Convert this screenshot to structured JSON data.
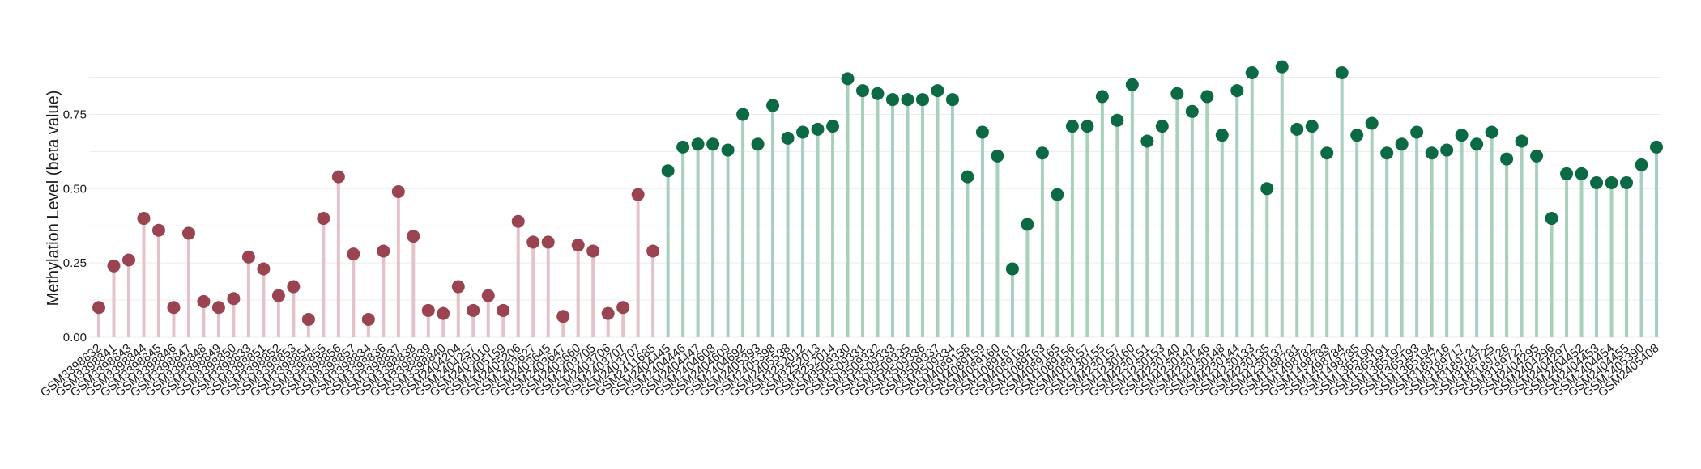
{
  "chart_data": {
    "type": "lollipop",
    "title": "",
    "xlabel": "",
    "ylabel": "Methylation Level (beta value)",
    "ylim": [
      0,
      0.92
    ],
    "yticks": [
      0.0,
      0.25,
      0.5,
      0.75
    ],
    "ytick_labels": [
      "0.00",
      "0.25",
      "0.50",
      "0.75"
    ],
    "grid": true,
    "colors": {
      "group_a_point": "#9b4451",
      "group_a_stem": "#e3c3c9",
      "group_b_point": "#0b6a43",
      "group_b_stem": "#a9cfbd",
      "grid": "#ececec"
    },
    "group_a_count": 38,
    "categories": [
      "GSM3398832",
      "GSM3398841",
      "GSM3398843",
      "GSM3398844",
      "GSM3398845",
      "GSM3398846",
      "GSM3398847",
      "GSM3398848",
      "GSM3398849",
      "GSM3398850",
      "GSM3398833",
      "GSM3398851",
      "GSM3398852",
      "GSM3398853",
      "GSM3398854",
      "GSM3398855",
      "GSM3398856",
      "GSM3398857",
      "GSM3398834",
      "GSM3398836",
      "GSM3398837",
      "GSM3398838",
      "GSM3398839",
      "GSM3398840",
      "GSM2404204",
      "GSM2404257",
      "GSM2403010",
      "GSM2405159",
      "GSM2405206",
      "GSM2403627",
      "GSM2403645",
      "GSM2403647",
      "GSM2403660",
      "GSM2403705",
      "GSM2403706",
      "GSM2403707",
      "GSM2403707",
      "GSM2411685",
      "GSM2404445",
      "GSM2404446",
      "GSM2404447",
      "GSM2404608",
      "GSM2404609",
      "GSM2404692",
      "GSM2405393",
      "GSM2405398",
      "GSM2405538",
      "GSM3252012",
      "GSM3252013",
      "GSM3252014",
      "GSM3509330",
      "GSM3509331",
      "GSM3509332",
      "GSM3509333",
      "GSM3509335",
      "GSM3509336",
      "GSM3509337",
      "GSM3509334",
      "GSM4089158",
      "GSM4089159",
      "GSM4089160",
      "GSM4089161",
      "GSM4089162",
      "GSM4089163",
      "GSM4089165",
      "GSM4089156",
      "GSM4089157",
      "GSM4230155",
      "GSM4230157",
      "GSM4230160",
      "GSM4230151",
      "GSM4230153",
      "GSM4230140",
      "GSM4230142",
      "GSM4230146",
      "GSM4230148",
      "GSM4230144",
      "GSM4230133",
      "GSM4230135",
      "GSM4230137",
      "GSM1498781",
      "GSM1498782",
      "GSM1498783",
      "GSM1498784",
      "GSM1498785",
      "GSM1365190",
      "GSM1365191",
      "GSM1365192",
      "GSM1365193",
      "GSM1365194",
      "GSM3189716",
      "GSM3189717",
      "GSM3189721",
      "GSM3189725",
      "GSM3189726",
      "GSM3189727",
      "GSM2404295",
      "GSM2404296",
      "GSM2404297",
      "GSM2404452",
      "GSM2404453",
      "GSM2404454",
      "GSM2404455",
      "GSM2405390",
      "GSM2405408"
    ],
    "values": [
      0.1,
      0.24,
      0.26,
      0.4,
      0.36,
      0.1,
      0.35,
      0.12,
      0.1,
      0.13,
      0.27,
      0.23,
      0.14,
      0.17,
      0.06,
      0.4,
      0.54,
      0.28,
      0.06,
      0.29,
      0.49,
      0.34,
      0.09,
      0.08,
      0.17,
      0.09,
      0.14,
      0.09,
      0.39,
      0.32,
      0.32,
      0.07,
      0.31,
      0.29,
      0.08,
      0.1,
      0.48,
      0.29,
      0.56,
      0.64,
      0.65,
      0.65,
      0.63,
      0.75,
      0.65,
      0.78,
      0.67,
      0.69,
      0.7,
      0.71,
      0.87,
      0.83,
      0.82,
      0.8,
      0.8,
      0.8,
      0.83,
      0.8,
      0.54,
      0.69,
      0.61,
      0.23,
      0.38,
      0.62,
      0.48,
      0.71,
      0.71,
      0.81,
      0.73,
      0.85,
      0.66,
      0.71,
      0.82,
      0.76,
      0.81,
      0.68,
      0.83,
      0.89,
      0.5,
      0.91,
      0.7,
      0.71,
      0.62,
      0.89,
      0.68,
      0.72,
      0.62,
      0.65,
      0.69,
      0.62,
      0.63,
      0.68,
      0.65,
      0.69,
      0.6,
      0.66,
      0.61,
      0.4,
      0.55,
      0.55,
      0.52,
      0.52,
      0.52,
      0.58,
      0.64
    ]
  }
}
